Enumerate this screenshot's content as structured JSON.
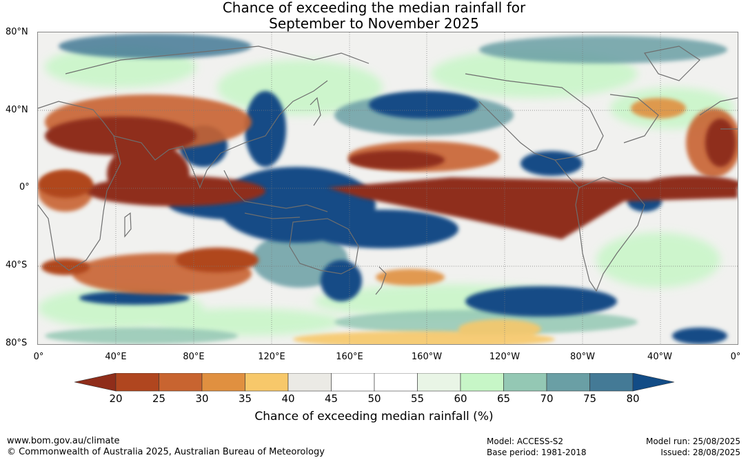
{
  "title": {
    "line1": "Chance of exceeding the median rainfall for",
    "line2": "September to November 2025"
  },
  "map": {
    "lat_labels": [
      "80°N",
      "40°N",
      "0°",
      "40°S",
      "80°S"
    ],
    "lon_labels": [
      "0°",
      "40°E",
      "80°E",
      "120°E",
      "160°E",
      "160°W",
      "120°W",
      "80°W",
      "40°W",
      "0°"
    ]
  },
  "colorbar": {
    "ticks": [
      "20",
      "25",
      "30",
      "35",
      "40",
      "45",
      "50",
      "55",
      "60",
      "65",
      "70",
      "75",
      "80"
    ],
    "colors": [
      "#8f2d1a",
      "#b0461f",
      "#c86430",
      "#e09040",
      "#f7c86a",
      "#ebeae5",
      "#ffffff",
      "#ffffff",
      "#e9f5e6",
      "#c7f6c7",
      "#94c8b4",
      "#6a9fa5",
      "#447a96",
      "#124c86"
    ],
    "label": "Chance of exceeding median rainfall (%)"
  },
  "footer": {
    "website": "www.bom.gov.au/climate",
    "copyright": "© Commonwealth of Australia 2025, Australian Bureau of Meteorology",
    "model": "Model: ACCESS-S2",
    "base_period": "Base period: 1981-2018",
    "model_run": "Model run: 25/08/2025",
    "issued": "Issued: 28/08/2025"
  }
}
